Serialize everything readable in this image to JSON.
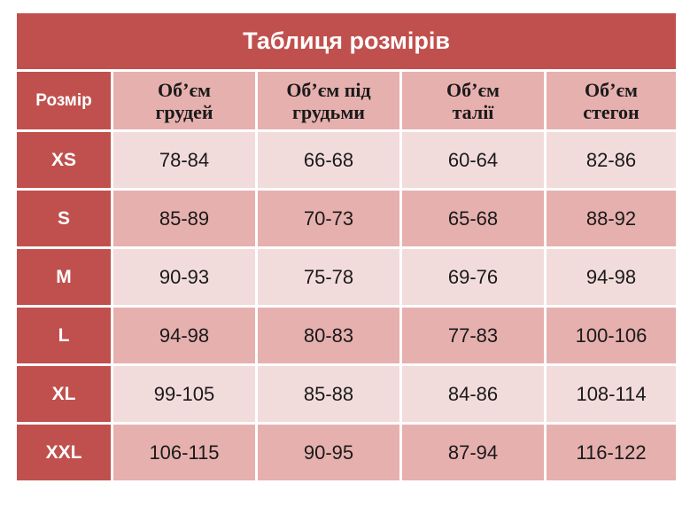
{
  "title": "Таблиця розмірів",
  "headers": {
    "size": "Розмір",
    "columns": [
      {
        "line1": "Об’єм",
        "line2": "грудей"
      },
      {
        "line1": "Об’єм під",
        "line2": "грудьми"
      },
      {
        "line1": "Об’єм",
        "line2": "талії"
      },
      {
        "line1": "Об’єм",
        "line2": "стегон"
      }
    ]
  },
  "rows": [
    {
      "size": "XS",
      "values": [
        "78-84",
        "66-68",
        "60-64",
        "82-86"
      ]
    },
    {
      "size": "S",
      "values": [
        "85-89",
        "70-73",
        "65-68",
        "88-92"
      ]
    },
    {
      "size": "M",
      "values": [
        "90-93",
        "75-78",
        "69-76",
        "94-98"
      ]
    },
    {
      "size": "L",
      "values": [
        "94-98",
        "80-83",
        "77-83",
        "100-106"
      ]
    },
    {
      "size": "XL",
      "values": [
        "99-105",
        "85-88",
        "84-86",
        "108-114"
      ]
    },
    {
      "size": "XXL",
      "values": [
        "106-115",
        "90-95",
        "87-94",
        "116-122"
      ]
    }
  ],
  "colors": {
    "header_red": "#c0504d",
    "dark_pink": "#e6b0ae",
    "light_pink": "#f2dcdb"
  }
}
